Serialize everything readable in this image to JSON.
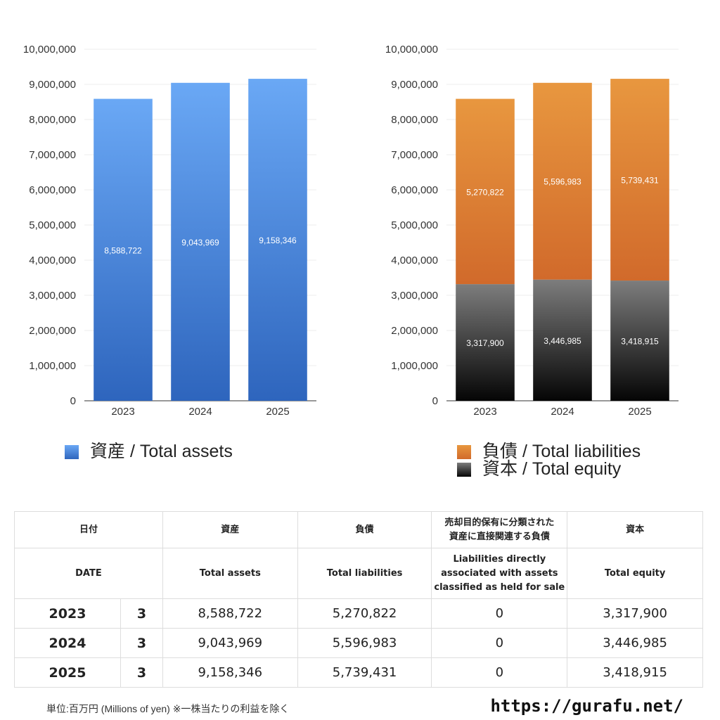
{
  "chart_data": [
    {
      "type": "bar",
      "categories": [
        "2023",
        "2024",
        "2025"
      ],
      "series": [
        {
          "name": "資産 / Total assets",
          "values": [
            8588722,
            9043969,
            9158346
          ],
          "labels": [
            "8,588,722",
            "9,043,969",
            "9,158,346"
          ]
        }
      ],
      "yticks": [
        "0",
        "1,000,000",
        "2,000,000",
        "3,000,000",
        "4,000,000",
        "5,000,000",
        "6,000,000",
        "7,000,000",
        "8,000,000",
        "9,000,000",
        "10,000,000"
      ],
      "ylim": [
        0,
        10000000
      ],
      "legend": [
        "資産 / Total assets"
      ]
    },
    {
      "type": "stacked-bar",
      "categories": [
        "2023",
        "2024",
        "2025"
      ],
      "series": [
        {
          "name": "資本 / Total equity",
          "values": [
            3317900,
            3446985,
            3418915
          ],
          "labels": [
            "3,317,900",
            "3,446,985",
            "3,418,915"
          ]
        },
        {
          "name": "負債 / Total liabilities",
          "values": [
            5270822,
            5596983,
            5739431
          ],
          "labels": [
            "5,270,822",
            "5,596,983",
            "5,739,431"
          ]
        }
      ],
      "yticks": [
        "0",
        "1,000,000",
        "2,000,000",
        "3,000,000",
        "4,000,000",
        "5,000,000",
        "6,000,000",
        "7,000,000",
        "8,000,000",
        "9,000,000",
        "10,000,000"
      ],
      "ylim": [
        0,
        10000000
      ],
      "legend": [
        "負債 / Total liabilities",
        "資本 / Total equity"
      ]
    }
  ],
  "colors": {
    "assets_top": "#6aa8f5",
    "assets_bottom": "#2e65bd",
    "liab_top": "#e8973f",
    "liab_bottom": "#d16a2b",
    "equity_top": "#7d7d7d",
    "equity_bottom": "#050505"
  },
  "table": {
    "headers_ja": [
      "日付",
      "資産",
      "負債",
      "売却目的保有に分類された",
      "資産に直接関連する負債",
      "資本"
    ],
    "headers_en": [
      "DATE",
      "Total assets",
      "Total liabilities",
      "Liabilities directly",
      "associated with assets",
      "classified as held for sale",
      "Total equity"
    ],
    "rows": [
      {
        "year": "2023",
        "month": "3",
        "assets": "8,588,722",
        "liabilities": "5,270,822",
        "held_for_sale": "0",
        "equity": "3,317,900"
      },
      {
        "year": "2024",
        "month": "3",
        "assets": "9,043,969",
        "liabilities": "5,596,983",
        "held_for_sale": "0",
        "equity": "3,446,985"
      },
      {
        "year": "2025",
        "month": "3",
        "assets": "9,158,346",
        "liabilities": "5,739,431",
        "held_for_sale": "0",
        "equity": "3,418,915"
      }
    ]
  },
  "footer": {
    "unit": "単位:百万円 (Millions of yen) ※一株当たりの利益を除く",
    "url": "https://gurafu.net/"
  }
}
